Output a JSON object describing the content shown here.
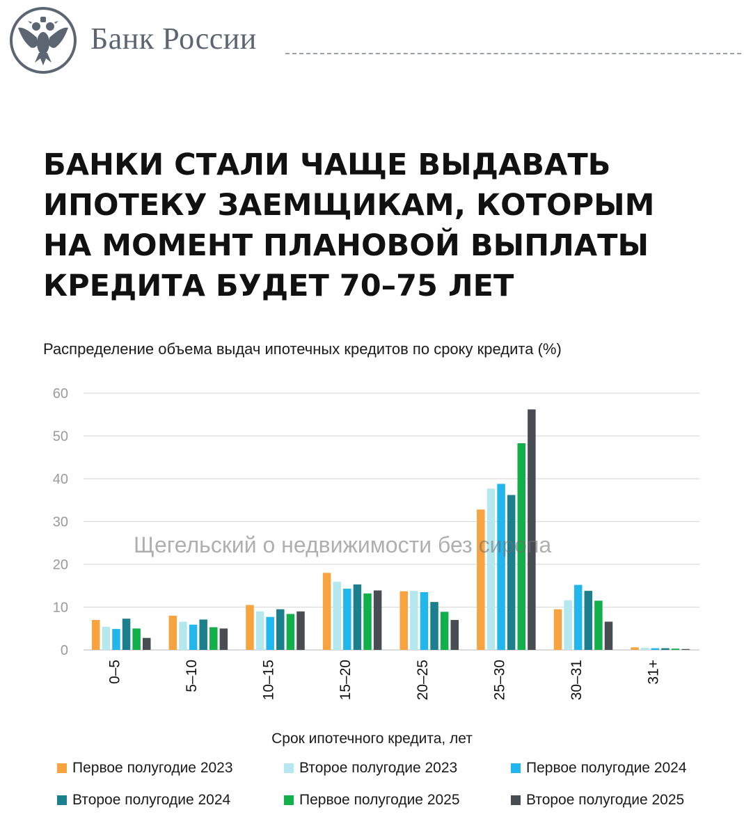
{
  "header": {
    "brand": "Банк России",
    "logo_icon": "double-headed-eagle-emblem"
  },
  "headline": [
    "БАНКИ СТАЛИ ЧАЩЕ ВЫДАВАТЬ",
    "ИПОТЕКУ ЗАЕМЩИКАМ, КОТОРЫМ",
    "НА МОМЕНТ ПЛАНОВОЙ ВЫПЛАТЫ",
    "КРЕДИТА БУДЕТ 70–75 ЛЕТ"
  ],
  "watermark": "Щегельский о недвижимости без сиропа",
  "chart_data": {
    "type": "bar",
    "title": "Распределение объема выдач ипотечных кредитов по сроку кредита (%)",
    "xlabel": "Срок ипотечного кредита, лет",
    "ylabel": "",
    "ylim": [
      0,
      60
    ],
    "yticks": [
      0,
      10,
      20,
      30,
      40,
      50,
      60
    ],
    "grid": true,
    "legend_position": "bottom",
    "categories": [
      "0–5",
      "5–10",
      "10–15",
      "15–20",
      "20–25",
      "25–30",
      "30–31",
      "31+"
    ],
    "series": [
      {
        "name": "Первое полугодие 2023",
        "color": "#f7a440",
        "values": [
          7.0,
          8.0,
          10.5,
          18.0,
          13.7,
          32.8,
          9.5,
          0.6
        ]
      },
      {
        "name": "Второе полугодие 2023",
        "color": "#b5e8ee",
        "values": [
          5.4,
          6.6,
          9.0,
          15.9,
          13.8,
          37.7,
          11.6,
          0.5
        ]
      },
      {
        "name": "Первое полугодие 2024",
        "color": "#21b6ec",
        "values": [
          4.9,
          5.9,
          7.7,
          14.3,
          13.5,
          38.8,
          15.2,
          0.4
        ]
      },
      {
        "name": "Второе полугодие 2024",
        "color": "#1c7f8d",
        "values": [
          7.3,
          7.1,
          9.5,
          15.3,
          11.2,
          36.2,
          13.8,
          0.4
        ]
      },
      {
        "name": "Первое полугодие 2025",
        "color": "#12b04a",
        "values": [
          5.0,
          5.3,
          8.4,
          13.2,
          8.9,
          48.3,
          11.5,
          0.3
        ]
      },
      {
        "name": "Второе полугодие 2025",
        "color": "#474d53",
        "values": [
          2.8,
          5.0,
          9.0,
          13.9,
          7.0,
          56.2,
          6.6,
          0.2
        ]
      }
    ]
  }
}
